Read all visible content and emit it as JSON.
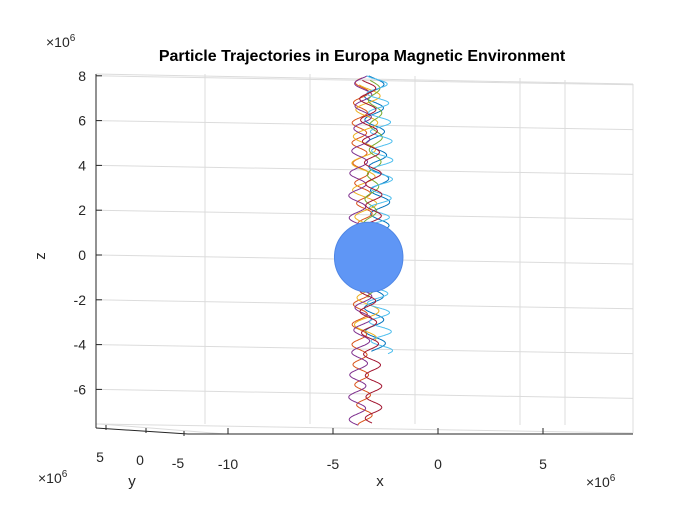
{
  "chart_data": {
    "type": "line",
    "projection": "3d",
    "title": "Particle Trajectories in Europa Magnetic Environment",
    "xlabel": "x",
    "ylabel": "y",
    "zlabel": "z",
    "x_exponent": "×10^6",
    "y_exponent": "×10^6",
    "z_exponent": "×10^6",
    "exponent_base": "×10",
    "exponent_power": "6",
    "x_ticks": [
      "-10",
      "-5",
      "0",
      "5"
    ],
    "x_tick_values": [
      -10,
      -5,
      0,
      5
    ],
    "y_ticks": [
      "5",
      "0",
      "-5"
    ],
    "y_tick_values": [
      5,
      0,
      -5
    ],
    "z_ticks": [
      "8",
      "6",
      "4",
      "2",
      "0",
      "-2",
      "-4",
      "-6"
    ],
    "z_tick_values": [
      8,
      6,
      4,
      2,
      0,
      -2,
      -4,
      -6
    ],
    "xlim": [
      -13,
      9
    ],
    "zlim": [
      -7.5,
      8
    ],
    "grid": true,
    "legend": "none",
    "sphere": {
      "name": "Europa",
      "center": [
        -3.3,
        0,
        -0.1
      ],
      "radius": 1.56,
      "color": "#5f96f5"
    },
    "series": [
      {
        "color": "#0072bd",
        "x0": -2.9,
        "amp": 0.45,
        "period": 1.05,
        "phase": 0.0,
        "zmin": -4.3,
        "zmax": 8.0
      },
      {
        "color": "#d95319",
        "x0": -3.6,
        "amp": 0.35,
        "period": 0.9,
        "phase": 1.2,
        "zmin": -7.6,
        "zmax": 7.9
      },
      {
        "color": "#edb120",
        "x0": -3.4,
        "amp": 0.55,
        "period": 1.2,
        "phase": 2.1,
        "zmin": -3.8,
        "zmax": 7.6
      },
      {
        "color": "#7e2f8e",
        "x0": -3.7,
        "amp": 0.4,
        "period": 1.0,
        "phase": 0.6,
        "zmin": -7.6,
        "zmax": 8.0
      },
      {
        "color": "#77ac30",
        "x0": -3.1,
        "amp": 0.3,
        "period": 1.1,
        "phase": 3.0,
        "zmin": -1.9,
        "zmax": 7.8
      },
      {
        "color": "#4dbeee",
        "x0": -2.8,
        "amp": 0.5,
        "period": 0.85,
        "phase": 1.7,
        "zmin": -4.4,
        "zmax": 8.0
      },
      {
        "color": "#a2142f",
        "x0": -3.2,
        "amp": 0.38,
        "period": 0.95,
        "phase": 2.6,
        "zmin": -7.5,
        "zmax": 7.8
      }
    ]
  }
}
